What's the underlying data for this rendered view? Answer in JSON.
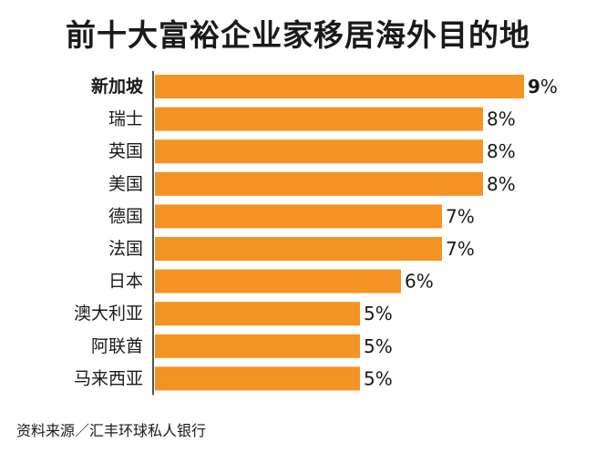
{
  "title": "前十大富裕企业家移居海外目的地",
  "source": "资料来源／汇丰环球私人银行",
  "colors": {
    "bar": "#F39324",
    "text": "#1a1a1a",
    "axis": "#1a1a1a"
  },
  "chart_data": {
    "type": "bar",
    "orientation": "horizontal",
    "title": "前十大富裕企业家移居海外目的地",
    "categories": [
      "新加坡",
      "瑞士",
      "英国",
      "美国",
      "德国",
      "法国",
      "日本",
      "澳大利亚",
      "阿联酋",
      "马来西亚"
    ],
    "values": [
      9,
      8,
      8,
      8,
      7,
      7,
      6,
      5,
      5,
      5
    ],
    "value_labels": [
      "9%",
      "8%",
      "8%",
      "8%",
      "7%",
      "7%",
      "6%",
      "5%",
      "5%",
      "5%"
    ],
    "highlight_category": "新加坡",
    "unit": "%",
    "xlim": [
      0,
      9
    ],
    "grid": false,
    "legend": "none"
  }
}
